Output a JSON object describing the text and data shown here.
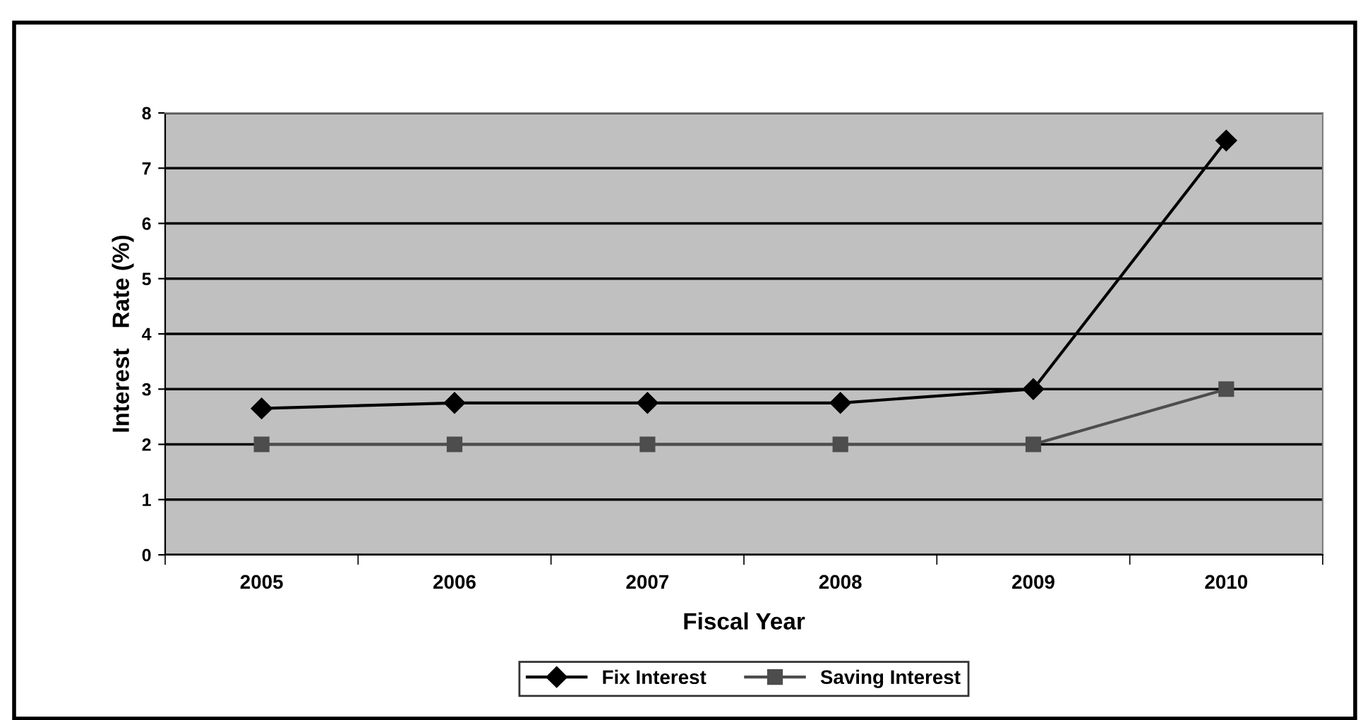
{
  "chart_data": {
    "type": "line",
    "xlabel": "Fiscal Year",
    "ylabel": "Interest   Rate (%)",
    "categories": [
      "2005",
      "2006",
      "2007",
      "2008",
      "2009",
      "2010"
    ],
    "series": [
      {
        "name": "Fix Interest",
        "color": "#000000",
        "marker": "diamond",
        "values": [
          2.65,
          2.75,
          2.75,
          2.75,
          3.0,
          7.5
        ]
      },
      {
        "name": "Saving Interest",
        "color": "#4d4d4d",
        "marker": "square",
        "values": [
          2,
          2,
          2,
          2,
          2,
          3
        ]
      }
    ],
    "ylim": [
      0,
      8
    ],
    "yticks": [
      0,
      1,
      2,
      3,
      4,
      5,
      6,
      7,
      8
    ],
    "grid": "y",
    "legend": "bottom",
    "line_style": "solid"
  }
}
